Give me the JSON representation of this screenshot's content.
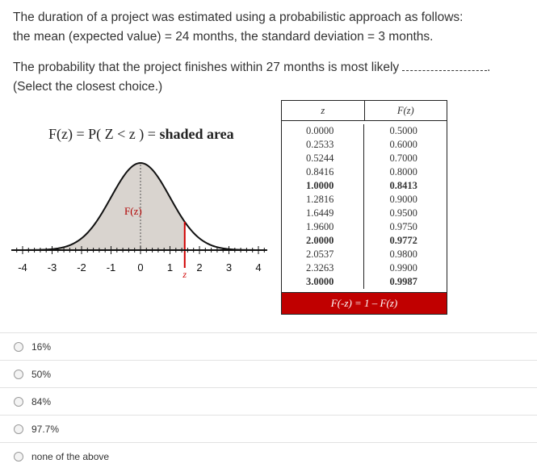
{
  "question": {
    "line1": "The duration of a project was estimated using a probabilistic approach as follows:",
    "line2": "the mean (expected value) = 24 months, the standard deviation = 3 months.",
    "prompt": "The probability that the project finishes within 27 months is most likely",
    "instruction": "(Select the closest choice.)"
  },
  "figure": {
    "formula_left": "F(z) = P( Z < z ) = ",
    "formula_right": "shaded area",
    "area_label": "F(z)",
    "z_marker": "z",
    "axis_ticks": [
      "-4",
      "-3",
      "-2",
      "-1",
      "0",
      "1",
      "2",
      "3",
      "4"
    ]
  },
  "table": {
    "col1_header": "z",
    "col2_header": "F(z)",
    "rows": [
      {
        "z": "0.0000",
        "f": "0.5000",
        "bold": false
      },
      {
        "z": "0.2533",
        "f": "0.6000",
        "bold": false
      },
      {
        "z": "0.5244",
        "f": "0.7000",
        "bold": false
      },
      {
        "z": "0.8416",
        "f": "0.8000",
        "bold": false
      },
      {
        "z": "1.0000",
        "f": "0.8413",
        "bold": true
      },
      {
        "z": "1.2816",
        "f": "0.9000",
        "bold": false
      },
      {
        "z": "1.6449",
        "f": "0.9500",
        "bold": false
      },
      {
        "z": "1.9600",
        "f": "0.9750",
        "bold": false
      },
      {
        "z": "2.0000",
        "f": "0.9772",
        "bold": true
      },
      {
        "z": "2.0537",
        "f": "0.9800",
        "bold": false
      },
      {
        "z": "2.3263",
        "f": "0.9900",
        "bold": false
      },
      {
        "z": "3.0000",
        "f": "0.9987",
        "bold": true
      }
    ],
    "footer": "F(-z) = 1 – F(z)",
    "footer_color": "#c00000"
  },
  "options": [
    {
      "label": "16%"
    },
    {
      "label": "50%"
    },
    {
      "label": "84%"
    },
    {
      "label": "97.7%"
    },
    {
      "label": "none of the above"
    }
  ]
}
